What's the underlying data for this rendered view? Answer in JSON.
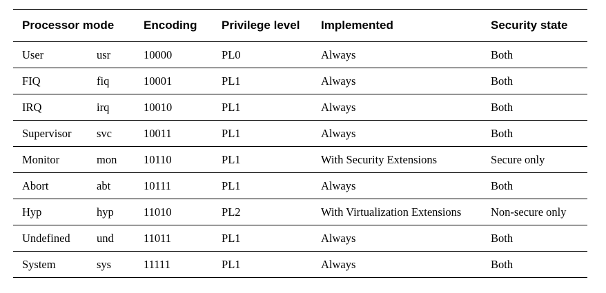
{
  "table": {
    "headers": {
      "mode": "Processor mode",
      "encoding": "Encoding",
      "privilege": "Privilege level",
      "implemented": "Implemented",
      "security": "Security state"
    },
    "rows": [
      {
        "mode": "User",
        "abbr": "usr",
        "encoding": "10000",
        "privilege": "PL0",
        "implemented": "Always",
        "security": "Both"
      },
      {
        "mode": "FIQ",
        "abbr": "fiq",
        "encoding": "10001",
        "privilege": "PL1",
        "implemented": "Always",
        "security": "Both"
      },
      {
        "mode": "IRQ",
        "abbr": "irq",
        "encoding": "10010",
        "privilege": "PL1",
        "implemented": "Always",
        "security": "Both"
      },
      {
        "mode": "Supervisor",
        "abbr": "svc",
        "encoding": "10011",
        "privilege": "PL1",
        "implemented": "Always",
        "security": "Both"
      },
      {
        "mode": "Monitor",
        "abbr": "mon",
        "encoding": "10110",
        "privilege": "PL1",
        "implemented": "With Security Extensions",
        "security": "Secure only"
      },
      {
        "mode": "Abort",
        "abbr": "abt",
        "encoding": "10111",
        "privilege": "PL1",
        "implemented": "Always",
        "security": "Both"
      },
      {
        "mode": "Hyp",
        "abbr": "hyp",
        "encoding": "11010",
        "privilege": "PL2",
        "implemented": "With Virtualization Extensions",
        "security": "Non-secure only"
      },
      {
        "mode": "Undefined",
        "abbr": "und",
        "encoding": "11011",
        "privilege": "PL1",
        "implemented": "Always",
        "security": "Both"
      },
      {
        "mode": "System",
        "abbr": "sys",
        "encoding": "11111",
        "privilege": "PL1",
        "implemented": "Always",
        "security": "Both"
      }
    ]
  }
}
